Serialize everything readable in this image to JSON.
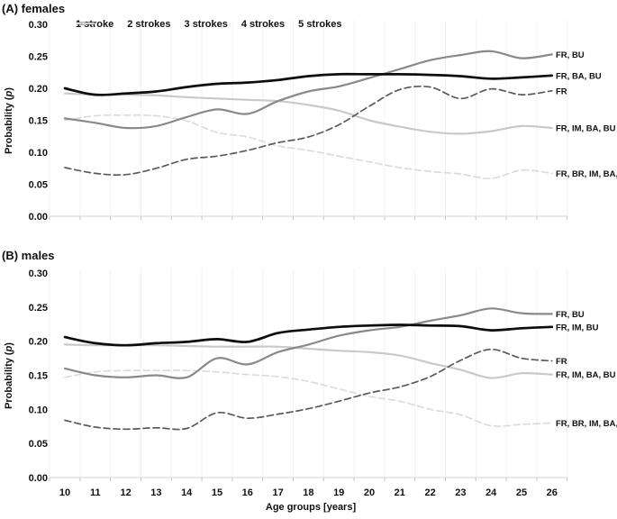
{
  "figure": {
    "xlabel": "Age groups [years]",
    "ylabel": "Probability (p)",
    "background": "#ffffff",
    "axis_color": "#d9d9d9",
    "grid_color": "#f2f2f2",
    "tick_color": "#c0c0c0",
    "legend": [
      {
        "label": "1 stroke",
        "color": "#5a5a5a"
      },
      {
        "label": "2 strokes",
        "color": "#898989"
      },
      {
        "label": "3 strokes",
        "color": "#0d0d0d"
      },
      {
        "label": "4 strokes",
        "color": "#c9c9c9"
      },
      {
        "label": "5 strokes",
        "color": "#dcdcdc"
      }
    ]
  },
  "chart_data": [
    {
      "type": "line",
      "title": "(A) females",
      "xlabel": "Age groups [years]",
      "ylabel": "Probability (p)",
      "ylim": [
        0,
        0.3
      ],
      "yticks": [
        0.0,
        0.05,
        0.1,
        0.15,
        0.2,
        0.25,
        0.3
      ],
      "grid": "faint-vertical",
      "legend_position": "top",
      "categories": [
        10,
        11,
        12,
        13,
        14,
        15,
        16,
        17,
        18,
        19,
        20,
        21,
        22,
        23,
        24,
        25,
        26
      ],
      "series": [
        {
          "name": "1 stroke",
          "end_label": "FR",
          "values": [
            0.076,
            0.067,
            0.065,
            0.075,
            0.089,
            0.094,
            0.103,
            0.115,
            0.124,
            0.143,
            0.172,
            0.198,
            0.202,
            0.184,
            0.199,
            0.19,
            0.196
          ]
        },
        {
          "name": "2 strokes",
          "end_label": "FR, BU",
          "values": [
            0.153,
            0.146,
            0.138,
            0.141,
            0.155,
            0.167,
            0.16,
            0.18,
            0.195,
            0.203,
            0.216,
            0.23,
            0.244,
            0.252,
            0.258,
            0.247,
            0.253
          ]
        },
        {
          "name": "3 strokes",
          "end_label": "FR, BA, BU",
          "values": [
            0.2,
            0.19,
            0.192,
            0.195,
            0.202,
            0.207,
            0.209,
            0.213,
            0.219,
            0.222,
            0.222,
            0.222,
            0.221,
            0.219,
            0.215,
            0.217,
            0.22
          ]
        },
        {
          "name": "4 strokes",
          "end_label": "FR, IM, BA, BU",
          "values": [
            0.192,
            0.19,
            0.19,
            0.189,
            0.186,
            0.184,
            0.182,
            0.18,
            0.174,
            0.165,
            0.15,
            0.14,
            0.132,
            0.129,
            0.133,
            0.141,
            0.138
          ]
        },
        {
          "name": "5 strokes",
          "end_label": "FR, BR, IM, BA, BU",
          "values": [
            0.15,
            0.157,
            0.158,
            0.157,
            0.149,
            0.131,
            0.124,
            0.11,
            0.103,
            0.094,
            0.085,
            0.076,
            0.07,
            0.066,
            0.059,
            0.072,
            0.067
          ]
        }
      ]
    },
    {
      "type": "line",
      "title": "(B) males",
      "xlabel": "Age groups [years]",
      "ylabel": "Probability (p)",
      "ylim": [
        0,
        0.3
      ],
      "yticks": [
        0.0,
        0.05,
        0.1,
        0.15,
        0.2,
        0.25,
        0.3
      ],
      "grid": "faint-vertical",
      "categories": [
        10,
        11,
        12,
        13,
        14,
        15,
        16,
        17,
        18,
        19,
        20,
        21,
        22,
        23,
        24,
        25,
        26
      ],
      "series": [
        {
          "name": "1 stroke",
          "end_label": "FR",
          "values": [
            0.084,
            0.074,
            0.071,
            0.073,
            0.072,
            0.095,
            0.087,
            0.093,
            0.101,
            0.112,
            0.124,
            0.133,
            0.148,
            0.172,
            0.188,
            0.175,
            0.171
          ]
        },
        {
          "name": "2 strokes",
          "end_label": "FR, BU",
          "values": [
            0.16,
            0.15,
            0.147,
            0.15,
            0.147,
            0.175,
            0.166,
            0.184,
            0.195,
            0.208,
            0.216,
            0.221,
            0.23,
            0.238,
            0.248,
            0.241,
            0.24
          ]
        },
        {
          "name": "3 strokes",
          "end_label": "FR, IM, BU",
          "values": [
            0.206,
            0.197,
            0.194,
            0.197,
            0.199,
            0.203,
            0.199,
            0.212,
            0.217,
            0.221,
            0.223,
            0.224,
            0.223,
            0.222,
            0.216,
            0.219,
            0.221
          ]
        },
        {
          "name": "4 strokes",
          "end_label": "FR, IM, BA, BU",
          "values": [
            0.195,
            0.194,
            0.194,
            0.194,
            0.193,
            0.192,
            0.192,
            0.192,
            0.189,
            0.186,
            0.184,
            0.179,
            0.168,
            0.158,
            0.146,
            0.153,
            0.151
          ]
        },
        {
          "name": "5 strokes",
          "end_label": "FR, BR, IM, BA, BU",
          "values": [
            0.147,
            0.155,
            0.157,
            0.157,
            0.157,
            0.155,
            0.151,
            0.148,
            0.141,
            0.13,
            0.119,
            0.112,
            0.1,
            0.092,
            0.076,
            0.078,
            0.08
          ]
        }
      ]
    }
  ]
}
